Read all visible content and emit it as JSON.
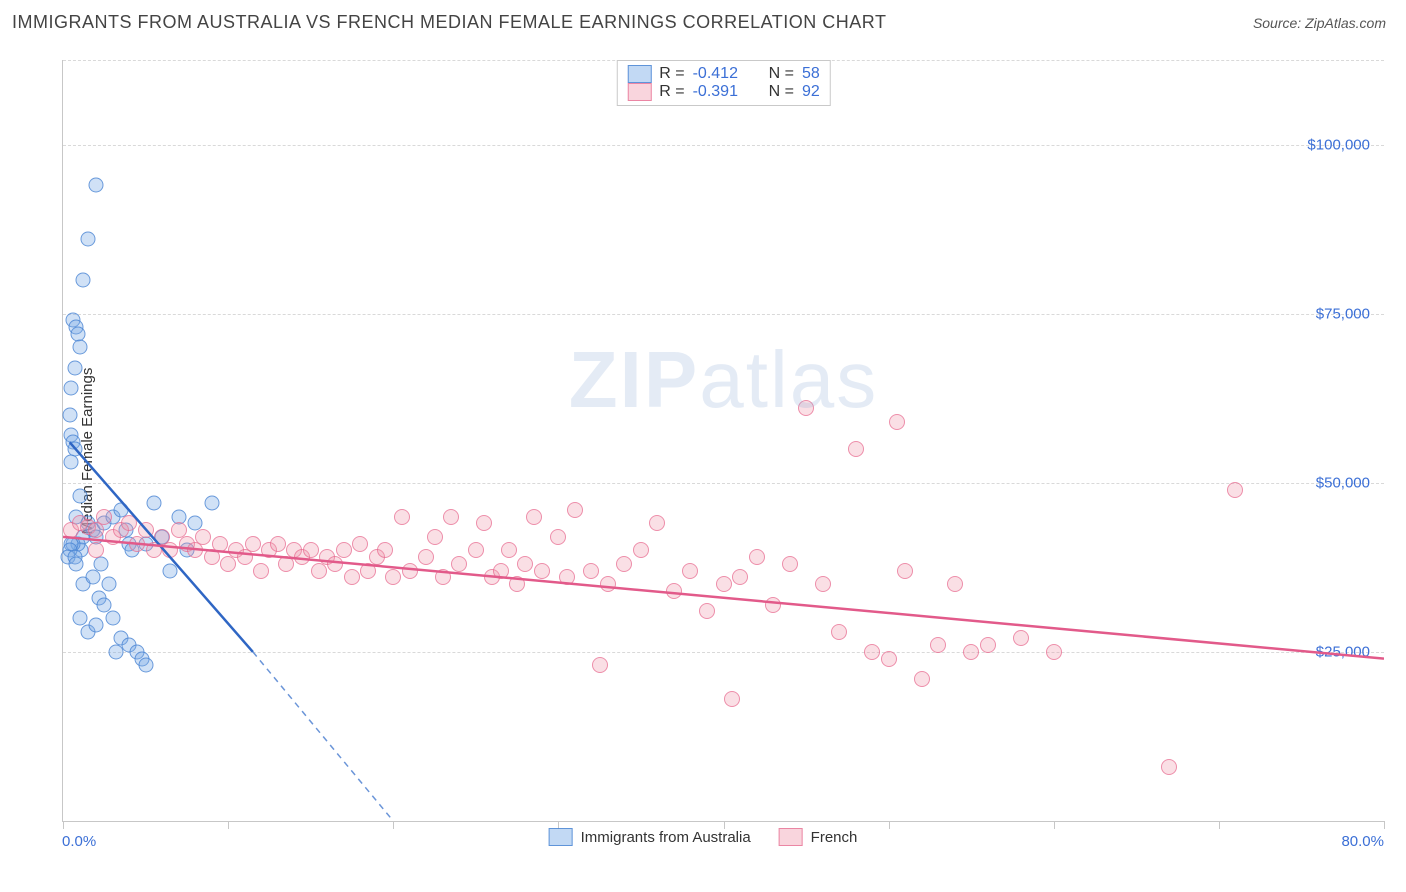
{
  "title": "IMMIGRANTS FROM AUSTRALIA VS FRENCH MEDIAN FEMALE EARNINGS CORRELATION CHART",
  "source_label": "Source: ",
  "source_value": "ZipAtlas.com",
  "ylabel": "Median Female Earnings",
  "watermark_bold": "ZIP",
  "watermark_rest": "atlas",
  "chart": {
    "type": "scatter",
    "xlim": [
      0,
      80
    ],
    "ylim": [
      0,
      112500
    ],
    "x_axis_label_left": "0.0%",
    "x_axis_label_right": "80.0%",
    "y_ticks": [
      25000,
      50000,
      75000,
      100000
    ],
    "y_tick_labels": [
      "$25,000",
      "$50,000",
      "$75,000",
      "$100,000"
    ],
    "x_major_ticks": [
      0,
      10,
      20,
      30,
      40,
      50,
      60,
      70,
      80
    ],
    "background_color": "#ffffff",
    "grid_color": "#d9d9d9",
    "axis_color": "#c7c7c7",
    "tick_label_color": "#3b6fd6",
    "series": [
      {
        "id": "aus",
        "label": "Immigrants from Australia",
        "marker_fill": "rgba(120,170,230,0.35)",
        "marker_stroke": "rgba(70,130,210,0.75)",
        "marker_size": 15,
        "line_color": "#2f66c4",
        "line_width": 2.5,
        "dash_extension_color": "#6b95d8",
        "r_value": "-0.412",
        "n_value": "58",
        "trend": {
          "x1": 0.4,
          "y1": 56000,
          "x2": 11.5,
          "y2": 25000,
          "ext_x2": 20,
          "ext_y2": 0
        },
        "points": [
          [
            0.5,
            57000
          ],
          [
            0.6,
            56000
          ],
          [
            0.7,
            55000
          ],
          [
            0.5,
            53000
          ],
          [
            0.6,
            74000
          ],
          [
            0.8,
            73000
          ],
          [
            0.9,
            72000
          ],
          [
            1.0,
            70000
          ],
          [
            0.7,
            67000
          ],
          [
            0.5,
            64000
          ],
          [
            0.4,
            60000
          ],
          [
            1.2,
            80000
          ],
          [
            1.5,
            86000
          ],
          [
            2.0,
            94000
          ],
          [
            0.8,
            45000
          ],
          [
            1.0,
            48000
          ],
          [
            1.2,
            42000
          ],
          [
            1.1,
            40000
          ],
          [
            0.9,
            41000
          ],
          [
            0.6,
            41000
          ],
          [
            0.5,
            41000
          ],
          [
            0.4,
            40000
          ],
          [
            0.3,
            39000
          ],
          [
            0.7,
            39000
          ],
          [
            1.5,
            44000
          ],
          [
            1.8,
            43000
          ],
          [
            2.0,
            42000
          ],
          [
            2.5,
            44000
          ],
          [
            3.0,
            45000
          ],
          [
            3.5,
            46000
          ],
          [
            3.8,
            43000
          ],
          [
            4.0,
            41000
          ],
          [
            4.2,
            40000
          ],
          [
            5.0,
            41000
          ],
          [
            5.5,
            47000
          ],
          [
            6.0,
            42000
          ],
          [
            7.0,
            45000
          ],
          [
            8.0,
            44000
          ],
          [
            9.0,
            47000
          ],
          [
            1.0,
            30000
          ],
          [
            1.5,
            28000
          ],
          [
            2.0,
            29000
          ],
          [
            2.2,
            33000
          ],
          [
            2.5,
            32000
          ],
          [
            3.0,
            30000
          ],
          [
            3.5,
            27000
          ],
          [
            4.0,
            26000
          ],
          [
            4.5,
            25000
          ],
          [
            4.8,
            24000
          ],
          [
            5.0,
            23000
          ],
          [
            3.2,
            25000
          ],
          [
            1.2,
            35000
          ],
          [
            1.8,
            36000
          ],
          [
            2.3,
            38000
          ],
          [
            0.8,
            38000
          ],
          [
            6.5,
            37000
          ],
          [
            7.5,
            40000
          ],
          [
            2.8,
            35000
          ]
        ]
      },
      {
        "id": "fr",
        "label": "French",
        "marker_fill": "rgba(240,150,170,0.30)",
        "marker_stroke": "rgba(230,100,140,0.65)",
        "marker_size": 16,
        "line_color": "#e25a8a",
        "line_width": 2.5,
        "r_value": "-0.391",
        "n_value": "92",
        "trend": {
          "x1": 0,
          "y1": 42000,
          "x2": 80,
          "y2": 24000
        },
        "points": [
          [
            0.5,
            43000
          ],
          [
            1.0,
            44000
          ],
          [
            1.5,
            43500
          ],
          [
            2.0,
            43000
          ],
          [
            2.5,
            45000
          ],
          [
            3.0,
            42000
          ],
          [
            3.5,
            43000
          ],
          [
            4.0,
            44000
          ],
          [
            4.5,
            41000
          ],
          [
            5.0,
            43000
          ],
          [
            5.5,
            40000
          ],
          [
            6.0,
            42000
          ],
          [
            6.5,
            40000
          ],
          [
            7.0,
            43000
          ],
          [
            7.5,
            41000
          ],
          [
            8.0,
            40000
          ],
          [
            8.5,
            42000
          ],
          [
            9.0,
            39000
          ],
          [
            9.5,
            41000
          ],
          [
            10,
            38000
          ],
          [
            10.5,
            40000
          ],
          [
            11,
            39000
          ],
          [
            11.5,
            41000
          ],
          [
            12,
            37000
          ],
          [
            12.5,
            40000
          ],
          [
            13,
            41000
          ],
          [
            13.5,
            38000
          ],
          [
            14,
            40000
          ],
          [
            14.5,
            39000
          ],
          [
            15,
            40000
          ],
          [
            15.5,
            37000
          ],
          [
            16,
            39000
          ],
          [
            16.5,
            38000
          ],
          [
            17,
            40000
          ],
          [
            17.5,
            36000
          ],
          [
            18,
            41000
          ],
          [
            18.5,
            37000
          ],
          [
            19,
            39000
          ],
          [
            19.5,
            40000
          ],
          [
            20,
            36000
          ],
          [
            20.5,
            45000
          ],
          [
            21,
            37000
          ],
          [
            22,
            39000
          ],
          [
            22.5,
            42000
          ],
          [
            23,
            36000
          ],
          [
            23.5,
            45000
          ],
          [
            24,
            38000
          ],
          [
            25,
            40000
          ],
          [
            25.5,
            44000
          ],
          [
            26,
            36000
          ],
          [
            26.5,
            37000
          ],
          [
            27,
            40000
          ],
          [
            27.5,
            35000
          ],
          [
            28,
            38000
          ],
          [
            28.5,
            45000
          ],
          [
            29,
            37000
          ],
          [
            30,
            42000
          ],
          [
            30.5,
            36000
          ],
          [
            31,
            46000
          ],
          [
            32,
            37000
          ],
          [
            32.5,
            23000
          ],
          [
            33,
            35000
          ],
          [
            34,
            38000
          ],
          [
            35,
            40000
          ],
          [
            36,
            44000
          ],
          [
            37,
            34000
          ],
          [
            38,
            37000
          ],
          [
            39,
            31000
          ],
          [
            40,
            35000
          ],
          [
            40.5,
            18000
          ],
          [
            41,
            36000
          ],
          [
            42,
            39000
          ],
          [
            43,
            32000
          ],
          [
            44,
            38000
          ],
          [
            45,
            61000
          ],
          [
            46,
            35000
          ],
          [
            47,
            28000
          ],
          [
            48,
            55000
          ],
          [
            49,
            25000
          ],
          [
            50,
            24000
          ],
          [
            50.5,
            59000
          ],
          [
            51,
            37000
          ],
          [
            52,
            21000
          ],
          [
            53,
            26000
          ],
          [
            54,
            35000
          ],
          [
            55,
            25000
          ],
          [
            56,
            26000
          ],
          [
            58,
            27000
          ],
          [
            60,
            25000
          ],
          [
            67,
            8000
          ],
          [
            71,
            49000
          ],
          [
            2.0,
            40000
          ]
        ]
      }
    ]
  },
  "legend_top": {
    "r_label": "R =",
    "n_label": "N ="
  },
  "legend_bottom_labels": [
    "Immigrants from Australia",
    "French"
  ]
}
